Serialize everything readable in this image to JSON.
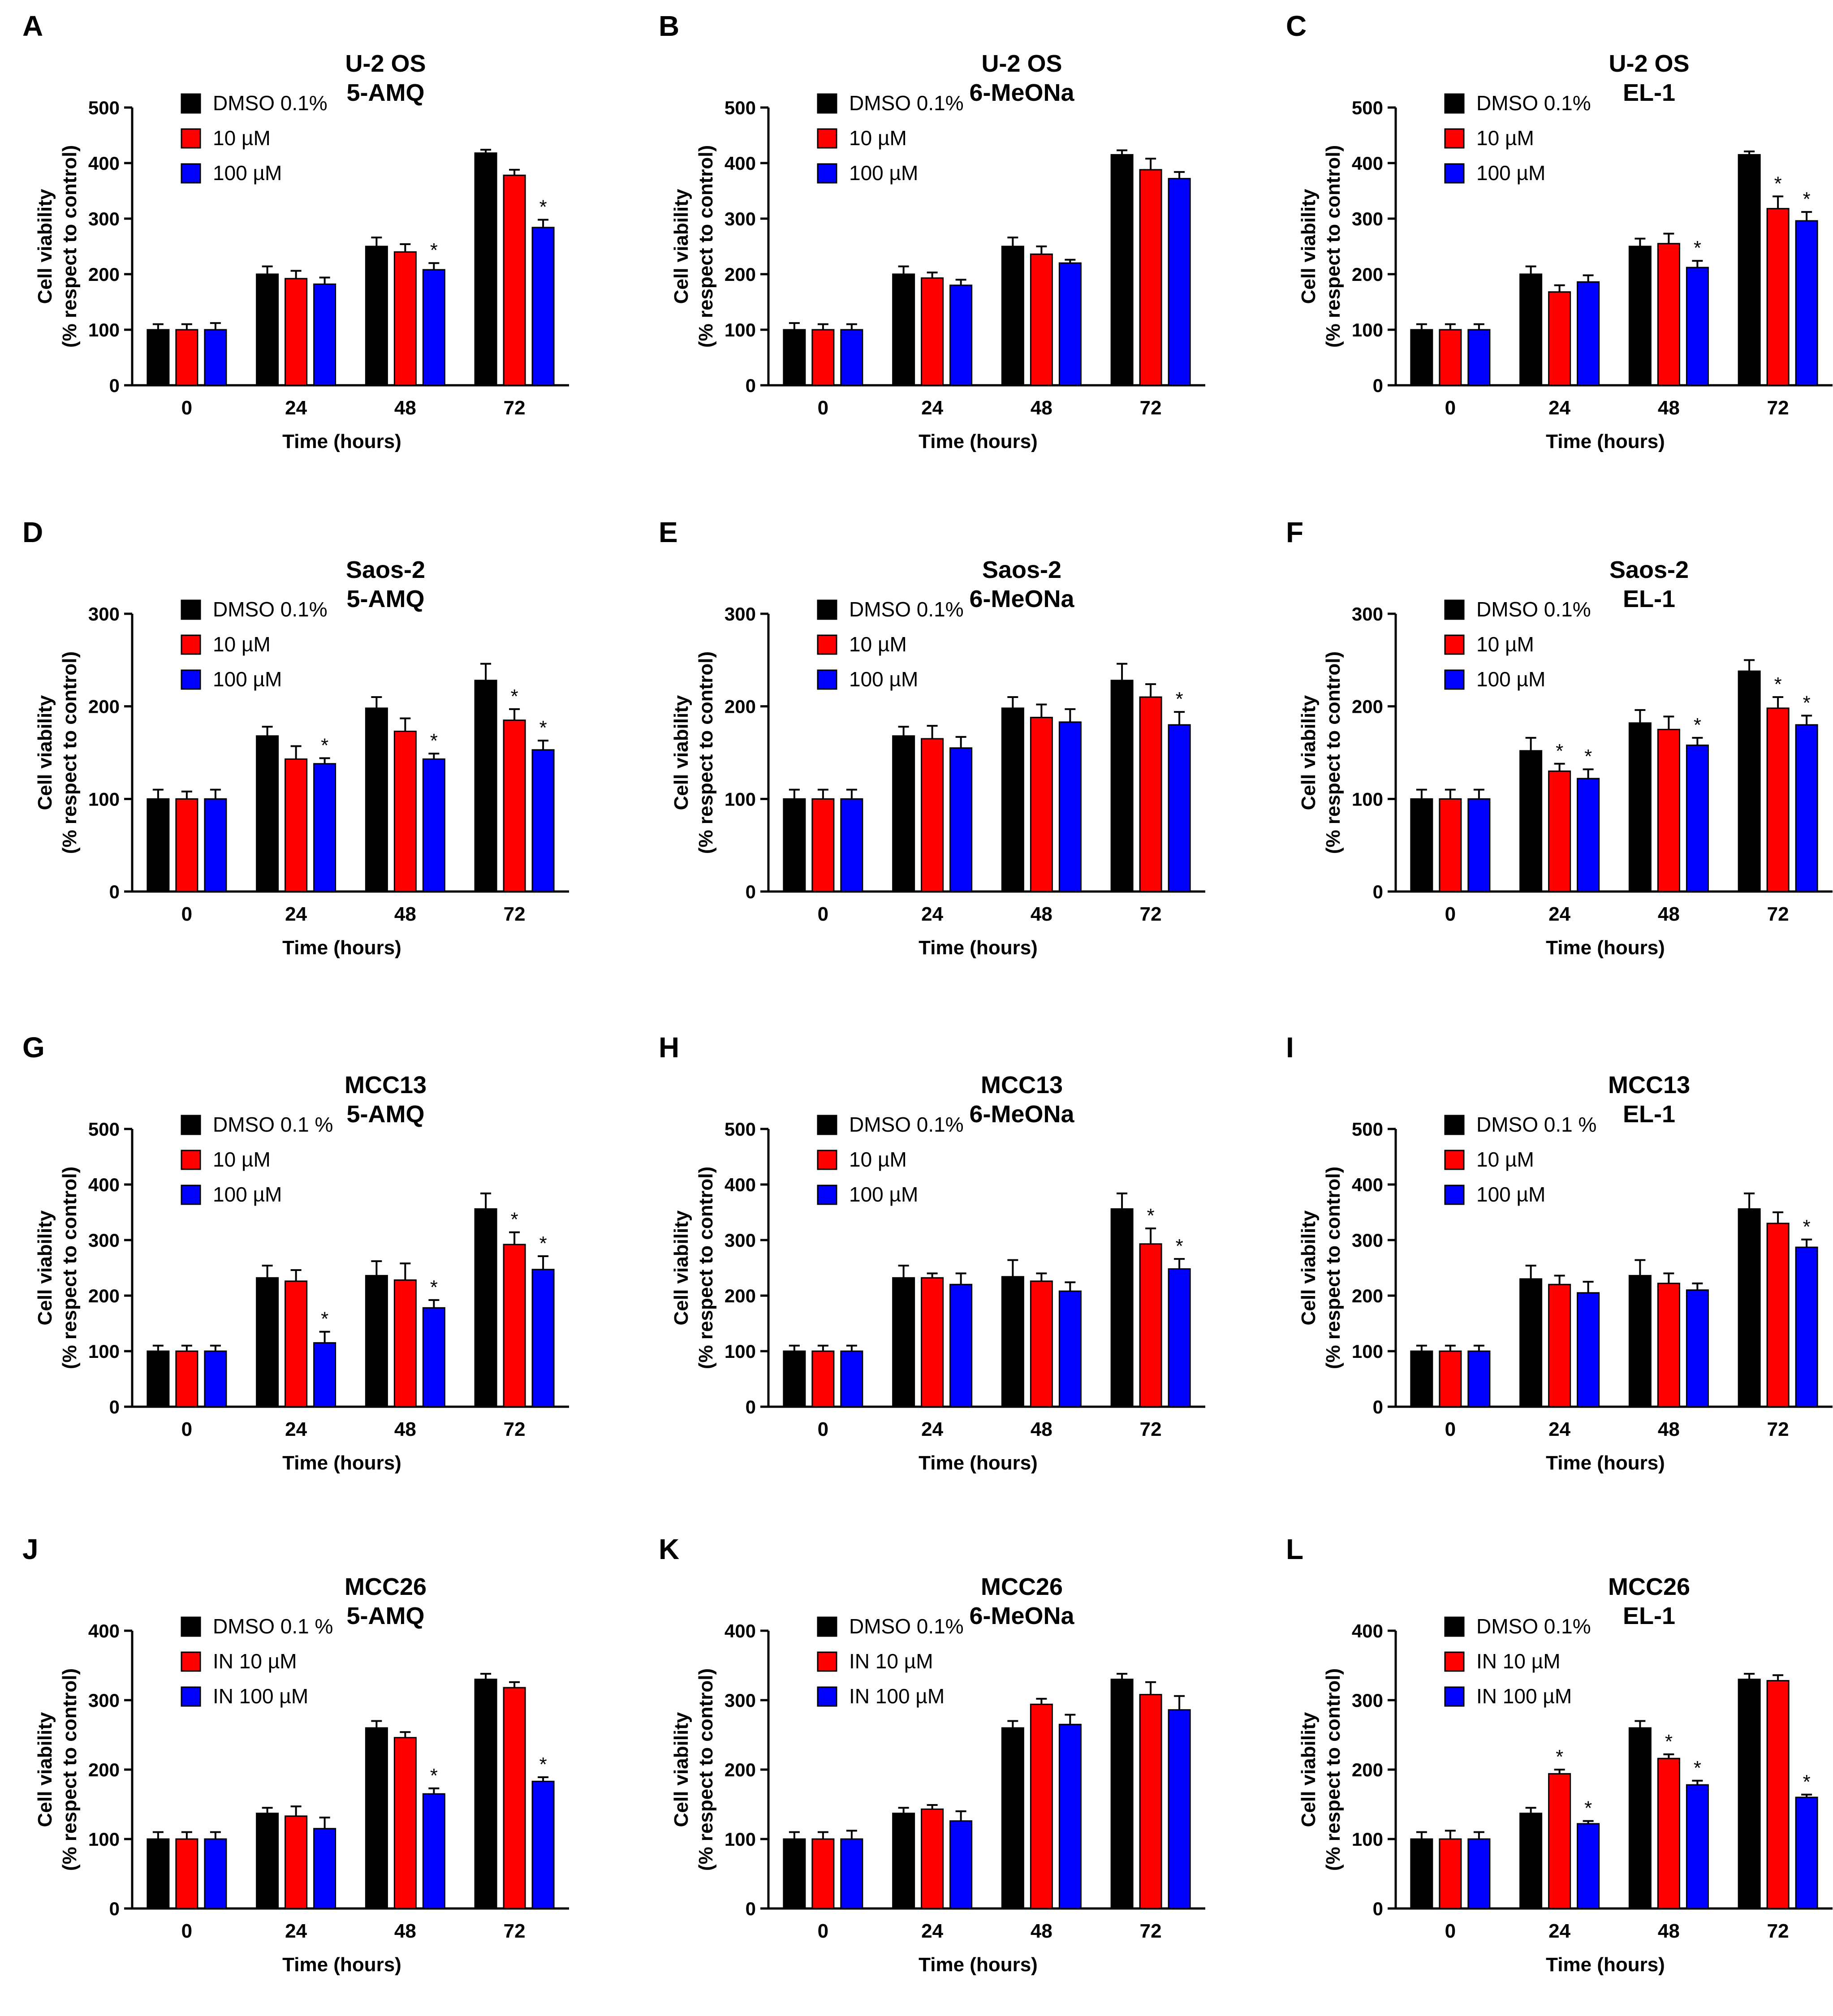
{
  "colors": {
    "dmso": "#000000",
    "low": "#ff0000",
    "high": "#0000ff"
  },
  "chart_data": [
    {
      "type": "bar",
      "panel": "A",
      "title": [
        "U-2 OS",
        "5-AMQ"
      ],
      "xlabel": "Time (hours)",
      "ylabel": [
        "Cell viability",
        "(% respect to control)"
      ],
      "categories": [
        "0",
        "24",
        "48",
        "72"
      ],
      "ylim": [
        0,
        500
      ],
      "yticks": [
        0,
        100,
        200,
        300,
        400,
        500
      ],
      "legend": [
        "DMSO 0.1%",
        "10 µM",
        "100 µM"
      ],
      "series": [
        {
          "name": "DMSO 0.1%",
          "values": [
            100,
            200,
            250,
            418
          ],
          "err": [
            10,
            14,
            16,
            6
          ]
        },
        {
          "name": "10 µM",
          "values": [
            100,
            192,
            240,
            378
          ],
          "err": [
            10,
            14,
            14,
            10
          ]
        },
        {
          "name": "100 µM",
          "values": [
            100,
            182,
            208,
            284
          ],
          "err": [
            12,
            12,
            12,
            14
          ]
        }
      ],
      "significance": [
        [
          false,
          false,
          false,
          false
        ],
        [
          false,
          false,
          false,
          false
        ],
        [
          false,
          false,
          true,
          true
        ]
      ]
    },
    {
      "type": "bar",
      "panel": "B",
      "title": [
        "U-2 OS",
        "6-MeONa"
      ],
      "xlabel": "Time (hours)",
      "ylabel": [
        "Cell viability",
        "(% respect to control)"
      ],
      "categories": [
        "0",
        "24",
        "48",
        "72"
      ],
      "ylim": [
        0,
        500
      ],
      "yticks": [
        0,
        100,
        200,
        300,
        400,
        500
      ],
      "legend": [
        "DMSO 0.1%",
        "10 µM",
        "100 µM"
      ],
      "series": [
        {
          "name": "DMSO 0.1%",
          "values": [
            100,
            200,
            250,
            415
          ],
          "err": [
            12,
            14,
            16,
            8
          ]
        },
        {
          "name": "10 µM",
          "values": [
            100,
            193,
            236,
            388
          ],
          "err": [
            10,
            10,
            14,
            20
          ]
        },
        {
          "name": "100 µM",
          "values": [
            100,
            180,
            220,
            372
          ],
          "err": [
            10,
            10,
            6,
            12
          ]
        }
      ],
      "significance": [
        [
          false,
          false,
          false,
          false
        ],
        [
          false,
          false,
          false,
          false
        ],
        [
          false,
          false,
          false,
          false
        ]
      ]
    },
    {
      "type": "bar",
      "panel": "C",
      "title": [
        "U-2 OS",
        "EL-1"
      ],
      "xlabel": "Time (hours)",
      "ylabel": [
        "Cell viability",
        "(% respect to control)"
      ],
      "categories": [
        "0",
        "24",
        "48",
        "72"
      ],
      "ylim": [
        0,
        500
      ],
      "yticks": [
        0,
        100,
        200,
        300,
        400,
        500
      ],
      "legend": [
        "DMSO 0.1%",
        "10 µM",
        "100 µM"
      ],
      "series": [
        {
          "name": "DMSO 0.1%",
          "values": [
            100,
            200,
            250,
            415
          ],
          "err": [
            10,
            14,
            14,
            6
          ]
        },
        {
          "name": "10 µM",
          "values": [
            100,
            168,
            255,
            318
          ],
          "err": [
            10,
            12,
            18,
            22
          ]
        },
        {
          "name": "100 µM",
          "values": [
            100,
            186,
            212,
            296
          ],
          "err": [
            10,
            12,
            12,
            16
          ]
        }
      ],
      "significance": [
        [
          false,
          false,
          false,
          false
        ],
        [
          false,
          false,
          false,
          true
        ],
        [
          false,
          false,
          true,
          true
        ]
      ]
    },
    {
      "type": "bar",
      "panel": "D",
      "title": [
        "Saos-2",
        "5-AMQ"
      ],
      "xlabel": "Time (hours)",
      "ylabel": [
        "Cell viability",
        "(% respect to control)"
      ],
      "categories": [
        "0",
        "24",
        "48",
        "72"
      ],
      "ylim": [
        0,
        300
      ],
      "yticks": [
        0,
        100,
        200,
        300
      ],
      "legend": [
        "DMSO 0.1%",
        "10 µM",
        "100 µM"
      ],
      "series": [
        {
          "name": "DMSO 0.1%",
          "values": [
            100,
            168,
            198,
            228
          ],
          "err": [
            10,
            10,
            12,
            18
          ]
        },
        {
          "name": "10 µM",
          "values": [
            100,
            143,
            173,
            185
          ],
          "err": [
            8,
            14,
            14,
            12
          ]
        },
        {
          "name": "100 µM",
          "values": [
            100,
            138,
            143,
            153
          ],
          "err": [
            10,
            6,
            6,
            10
          ]
        }
      ],
      "significance": [
        [
          false,
          false,
          false,
          false
        ],
        [
          false,
          false,
          false,
          true
        ],
        [
          false,
          true,
          true,
          true
        ]
      ]
    },
    {
      "type": "bar",
      "panel": "E",
      "title": [
        "Saos-2",
        "6-MeONa"
      ],
      "xlabel": "Time (hours)",
      "ylabel": [
        "Cell viability",
        "(% respect to control)"
      ],
      "categories": [
        "0",
        "24",
        "48",
        "72"
      ],
      "ylim": [
        0,
        300
      ],
      "yticks": [
        0,
        100,
        200,
        300
      ],
      "legend": [
        "DMSO 0.1%",
        "10 µM",
        "100 µM"
      ],
      "series": [
        {
          "name": "DMSO 0.1%",
          "values": [
            100,
            168,
            198,
            228
          ],
          "err": [
            10,
            10,
            12,
            18
          ]
        },
        {
          "name": "10 µM",
          "values": [
            100,
            165,
            188,
            210
          ],
          "err": [
            10,
            14,
            14,
            14
          ]
        },
        {
          "name": "100 µM",
          "values": [
            100,
            155,
            183,
            180
          ],
          "err": [
            10,
            12,
            14,
            14
          ]
        }
      ],
      "significance": [
        [
          false,
          false,
          false,
          false
        ],
        [
          false,
          false,
          false,
          false
        ],
        [
          false,
          false,
          false,
          true
        ]
      ]
    },
    {
      "type": "bar",
      "panel": "F",
      "title": [
        "Saos-2",
        "EL-1"
      ],
      "xlabel": "Time (hours)",
      "ylabel": [
        "Cell viability",
        "(% respect to control)"
      ],
      "categories": [
        "0",
        "24",
        "48",
        "72"
      ],
      "ylim": [
        0,
        300
      ],
      "yticks": [
        0,
        100,
        200,
        300
      ],
      "legend": [
        "DMSO 0.1%",
        "10 µM",
        "100 µM"
      ],
      "series": [
        {
          "name": "DMSO 0.1%",
          "values": [
            100,
            152,
            182,
            238
          ],
          "err": [
            10,
            14,
            14,
            12
          ]
        },
        {
          "name": "10 µM",
          "values": [
            100,
            130,
            175,
            198
          ],
          "err": [
            10,
            8,
            14,
            12
          ]
        },
        {
          "name": "100 µM",
          "values": [
            100,
            122,
            158,
            180
          ],
          "err": [
            10,
            10,
            8,
            10
          ]
        }
      ],
      "significance": [
        [
          false,
          false,
          false,
          false
        ],
        [
          false,
          true,
          false,
          true
        ],
        [
          false,
          true,
          true,
          true
        ]
      ]
    },
    {
      "type": "bar",
      "panel": "G",
      "title": [
        "MCC13",
        "5-AMQ"
      ],
      "xlabel": "Time (hours)",
      "ylabel": [
        "Cell viability",
        "(% respect to control)"
      ],
      "categories": [
        "0",
        "24",
        "48",
        "72"
      ],
      "ylim": [
        0,
        500
      ],
      "yticks": [
        0,
        100,
        200,
        300,
        400,
        500
      ],
      "legend": [
        "DMSO 0.1 %",
        "10 µM",
        "100 µM"
      ],
      "series": [
        {
          "name": "DMSO 0.1 %",
          "values": [
            100,
            232,
            236,
            356
          ],
          "err": [
            10,
            22,
            26,
            28
          ]
        },
        {
          "name": "10 µM",
          "values": [
            100,
            226,
            228,
            292
          ],
          "err": [
            10,
            20,
            30,
            22
          ]
        },
        {
          "name": "100 µM",
          "values": [
            100,
            115,
            178,
            247
          ],
          "err": [
            10,
            20,
            14,
            24
          ]
        }
      ],
      "significance": [
        [
          false,
          false,
          false,
          false
        ],
        [
          false,
          false,
          false,
          true
        ],
        [
          false,
          true,
          true,
          true
        ]
      ]
    },
    {
      "type": "bar",
      "panel": "H",
      "title": [
        "MCC13",
        "6-MeONa"
      ],
      "xlabel": "Time (hours)",
      "ylabel": [
        "Cell viability",
        "(% respect to control)"
      ],
      "categories": [
        "0",
        "24",
        "48",
        "72"
      ],
      "ylim": [
        0,
        500
      ],
      "yticks": [
        0,
        100,
        200,
        300,
        400,
        500
      ],
      "legend": [
        "DMSO 0.1%",
        "10 µM",
        "100 µM"
      ],
      "series": [
        {
          "name": "DMSO 0.1%",
          "values": [
            100,
            232,
            234,
            356
          ],
          "err": [
            10,
            22,
            30,
            28
          ]
        },
        {
          "name": "10 µM",
          "values": [
            100,
            232,
            226,
            293
          ],
          "err": [
            10,
            8,
            14,
            28
          ]
        },
        {
          "name": "100 µM",
          "values": [
            100,
            220,
            208,
            248
          ],
          "err": [
            10,
            20,
            16,
            18
          ]
        }
      ],
      "significance": [
        [
          false,
          false,
          false,
          false
        ],
        [
          false,
          false,
          false,
          true
        ],
        [
          false,
          false,
          false,
          true
        ]
      ]
    },
    {
      "type": "bar",
      "panel": "I",
      "title": [
        "MCC13",
        "EL-1"
      ],
      "xlabel": "Time (hours)",
      "ylabel": [
        "Cell viability",
        "(% respect to control)"
      ],
      "categories": [
        "0",
        "24",
        "48",
        "72"
      ],
      "ylim": [
        0,
        500
      ],
      "yticks": [
        0,
        100,
        200,
        300,
        400,
        500
      ],
      "legend": [
        "DMSO 0.1 %",
        "10 µM",
        "100 µM"
      ],
      "series": [
        {
          "name": "DMSO 0.1 %",
          "values": [
            100,
            230,
            236,
            356
          ],
          "err": [
            10,
            24,
            28,
            28
          ]
        },
        {
          "name": "10 µM",
          "values": [
            100,
            220,
            222,
            330
          ],
          "err": [
            10,
            16,
            18,
            20
          ]
        },
        {
          "name": "100 µM",
          "values": [
            100,
            205,
            210,
            287
          ],
          "err": [
            10,
            20,
            12,
            14
          ]
        }
      ],
      "significance": [
        [
          false,
          false,
          false,
          false
        ],
        [
          false,
          false,
          false,
          false
        ],
        [
          false,
          false,
          false,
          true
        ]
      ]
    },
    {
      "type": "bar",
      "panel": "J",
      "title": [
        "MCC26",
        "5-AMQ"
      ],
      "xlabel": "Time (hours)",
      "ylabel": [
        "Cell viability",
        "(% respect to control)"
      ],
      "categories": [
        "0",
        "24",
        "48",
        "72"
      ],
      "ylim": [
        0,
        400
      ],
      "yticks": [
        0,
        100,
        200,
        300,
        400
      ],
      "legend": [
        "DMSO 0.1 %",
        "IN 10 µM",
        "IN 100 µM"
      ],
      "series": [
        {
          "name": "DMSO 0.1 %",
          "values": [
            100,
            137,
            260,
            330
          ],
          "err": [
            10,
            8,
            10,
            8
          ]
        },
        {
          "name": "IN 10 µM",
          "values": [
            100,
            133,
            246,
            318
          ],
          "err": [
            10,
            14,
            8,
            8
          ]
        },
        {
          "name": "IN 100 µM",
          "values": [
            100,
            115,
            165,
            183
          ],
          "err": [
            10,
            16,
            8,
            6
          ]
        }
      ],
      "significance": [
        [
          false,
          false,
          false,
          false
        ],
        [
          false,
          false,
          false,
          false
        ],
        [
          false,
          false,
          true,
          true
        ]
      ]
    },
    {
      "type": "bar",
      "panel": "K",
      "title": [
        "MCC26",
        "6-MeONa"
      ],
      "xlabel": "Time (hours)",
      "ylabel": [
        "Cell viability",
        "(% respect to control)"
      ],
      "categories": [
        "0",
        "24",
        "48",
        "72"
      ],
      "ylim": [
        0,
        400
      ],
      "yticks": [
        0,
        100,
        200,
        300,
        400
      ],
      "legend": [
        "DMSO 0.1%",
        "IN 10 µM",
        "IN 100 µM"
      ],
      "series": [
        {
          "name": "DMSO 0.1%",
          "values": [
            100,
            137,
            260,
            330
          ],
          "err": [
            10,
            8,
            10,
            8
          ]
        },
        {
          "name": "IN 10 µM",
          "values": [
            100,
            143,
            294,
            308
          ],
          "err": [
            10,
            6,
            8,
            18
          ]
        },
        {
          "name": "IN 100 µM",
          "values": [
            100,
            126,
            265,
            286
          ],
          "err": [
            12,
            14,
            14,
            20
          ]
        }
      ],
      "significance": [
        [
          false,
          false,
          false,
          false
        ],
        [
          false,
          false,
          false,
          false
        ],
        [
          false,
          false,
          false,
          false
        ]
      ]
    },
    {
      "type": "bar",
      "panel": "L",
      "title": [
        "MCC26",
        "EL-1"
      ],
      "xlabel": "Time (hours)",
      "ylabel": [
        "Cell viability",
        "(% respect to control)"
      ],
      "categories": [
        "0",
        "24",
        "48",
        "72"
      ],
      "ylim": [
        0,
        400
      ],
      "yticks": [
        0,
        100,
        200,
        300,
        400
      ],
      "legend": [
        "DMSO 0.1%",
        "IN 10 µM",
        "IN 100 µM"
      ],
      "series": [
        {
          "name": "DMSO 0.1%",
          "values": [
            100,
            137,
            260,
            330
          ],
          "err": [
            10,
            8,
            10,
            8
          ]
        },
        {
          "name": "IN 10 µM",
          "values": [
            100,
            194,
            216,
            328
          ],
          "err": [
            12,
            6,
            6,
            8
          ]
        },
        {
          "name": "IN 100 µM",
          "values": [
            100,
            122,
            178,
            160
          ],
          "err": [
            10,
            4,
            6,
            4
          ]
        }
      ],
      "significance": [
        [
          false,
          false,
          false,
          false
        ],
        [
          false,
          true,
          true,
          false
        ],
        [
          false,
          true,
          true,
          true
        ]
      ]
    }
  ]
}
